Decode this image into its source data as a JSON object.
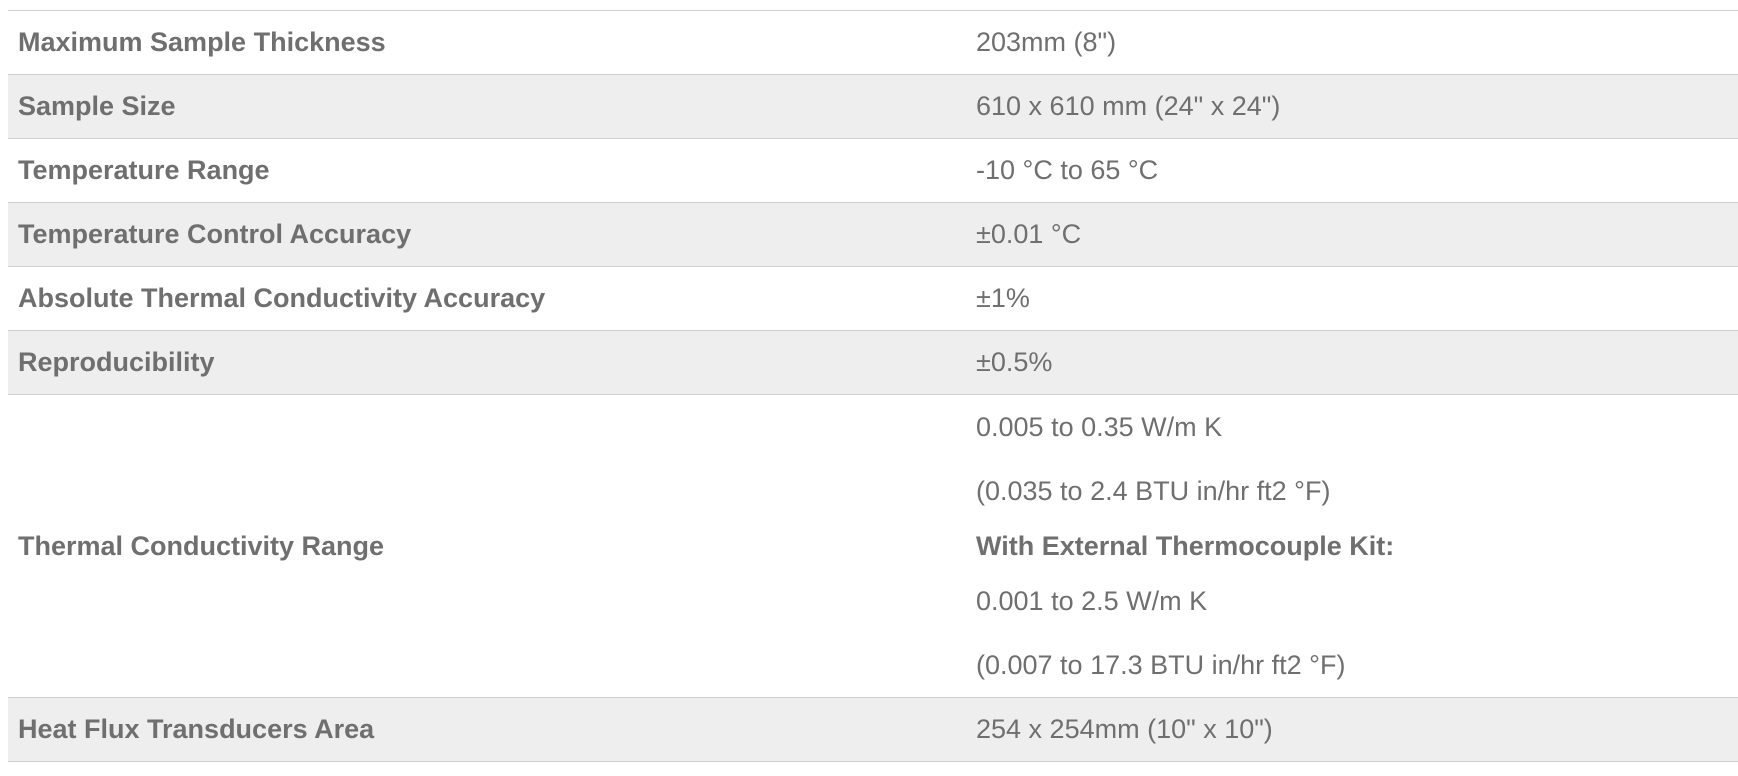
{
  "specs": [
    {
      "label": "Maximum Sample Thickness",
      "value": "203mm (8\")"
    },
    {
      "label": "Sample Size",
      "value": "610 x 610 mm (24\" x 24\")"
    },
    {
      "label": "Temperature Range",
      "value": "-10 °C to 65 °C"
    },
    {
      "label": "Temperature Control Accuracy",
      "value": "±0.01 °C"
    },
    {
      "label": "Absolute Thermal Conductivity Accuracy",
      "value": "±1%"
    },
    {
      "label": "Reproducibility",
      "value": "±0.5%"
    },
    {
      "label": "Thermal Conductivity Range",
      "lines": [
        "0.005 to 0.35 W/m K",
        "(0.035 to 2.4 BTU in/hr ft2 °F)",
        "With External Thermocouple Kit:",
        "0.001 to 2.5 W/m K",
        "(0.007 to 17.3 BTU in/hr ft2 °F)"
      ]
    },
    {
      "label": "Heat Flux Transducers Area",
      "value": "254 x 254mm (10\" x 10\")"
    }
  ]
}
